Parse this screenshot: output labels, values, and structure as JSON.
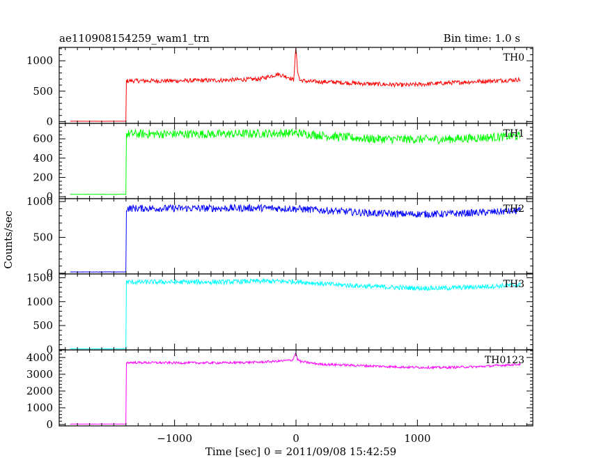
{
  "header": {
    "left_title": "ae110908154259_wam1_trn",
    "right_title": "Bin time: 1.0 s"
  },
  "chart_data": {
    "type": "line",
    "title": "ae110908154259_wam1_trn",
    "subtitle": "Bin time: 1.0 s",
    "xlabel": "Time [sec] 0 = 2011/09/08 15:42:59",
    "ylabel": "Counts/sec",
    "xlim": [
      -1950,
      1950
    ],
    "x_ticks": [
      -1000,
      0,
      1000
    ],
    "x_tick_labels": [
      "−1000",
      "0",
      "1000"
    ],
    "grid": false,
    "panels": [
      {
        "name": "TH0",
        "color": "#ff0000",
        "ylim": [
          -30,
          1220
        ],
        "y_ticks": [
          0,
          500,
          1000
        ],
        "y_tick_labels": [
          "0",
          "500",
          "1000"
        ],
        "x": [
          -1860,
          -1400,
          -1399,
          -1300,
          -1000,
          -600,
          -300,
          -150,
          -60,
          -20,
          0,
          10,
          30,
          100,
          300,
          600,
          900,
          1200,
          1500,
          1850
        ],
        "y": [
          5,
          5,
          670,
          670,
          670,
          680,
          700,
          780,
          730,
          680,
          1230,
          880,
          680,
          660,
          650,
          620,
          600,
          630,
          660,
          690
        ],
        "noise": 35
      },
      {
        "name": "TH1",
        "color": "#00ff00",
        "ylim": [
          -20,
          760
        ],
        "y_ticks": [
          0,
          200,
          400,
          600
        ],
        "y_tick_labels": [
          "0",
          "200",
          "400",
          "600"
        ],
        "x": [
          -1860,
          -1400,
          -1399,
          -1000,
          -600,
          -300,
          0,
          300,
          600,
          900,
          1200,
          1500,
          1850
        ],
        "y": [
          25,
          25,
          650,
          650,
          650,
          655,
          660,
          625,
          600,
          595,
          595,
          610,
          630
        ],
        "noise": 45
      },
      {
        "name": "TH2",
        "color": "#0000ff",
        "ylim": [
          -10,
          1040
        ],
        "y_ticks": [
          0,
          500,
          1000
        ],
        "y_tick_labels": [
          "0",
          "500",
          "1000"
        ],
        "x": [
          -1860,
          -1400,
          -1399,
          -1000,
          -600,
          -300,
          0,
          300,
          600,
          900,
          1200,
          1500,
          1850
        ],
        "y": [
          18,
          18,
          905,
          905,
          905,
          910,
          900,
          870,
          840,
          825,
          825,
          845,
          870
        ],
        "noise": 50
      },
      {
        "name": "TH3",
        "color": "#00ffff",
        "ylim": [
          -10,
          1580
        ],
        "y_ticks": [
          0,
          500,
          1000,
          1500
        ],
        "y_tick_labels": [
          "0",
          "500",
          "1000",
          "1500"
        ],
        "x": [
          -1860,
          -1400,
          -1399,
          -1000,
          -600,
          -300,
          0,
          300,
          600,
          900,
          1200,
          1500,
          1850
        ],
        "y": [
          15,
          15,
          1410,
          1410,
          1410,
          1430,
          1420,
          1360,
          1320,
          1290,
          1280,
          1310,
          1350
        ],
        "noise": 50
      },
      {
        "name": "TH0123",
        "color": "#ff00ff",
        "ylim": [
          -80,
          4450
        ],
        "y_ticks": [
          0,
          1000,
          2000,
          3000,
          4000
        ],
        "y_tick_labels": [
          "0",
          "1000",
          "2000",
          "3000",
          "4000"
        ],
        "x": [
          -1860,
          -1400,
          -1399,
          -1000,
          -600,
          -300,
          -150,
          -30,
          0,
          10,
          40,
          200,
          600,
          900,
          1200,
          1500,
          1850
        ],
        "y": [
          30,
          30,
          3700,
          3680,
          3680,
          3720,
          3780,
          3840,
          4300,
          3900,
          3750,
          3600,
          3500,
          3420,
          3400,
          3450,
          3600
        ],
        "noise": 70
      }
    ]
  }
}
